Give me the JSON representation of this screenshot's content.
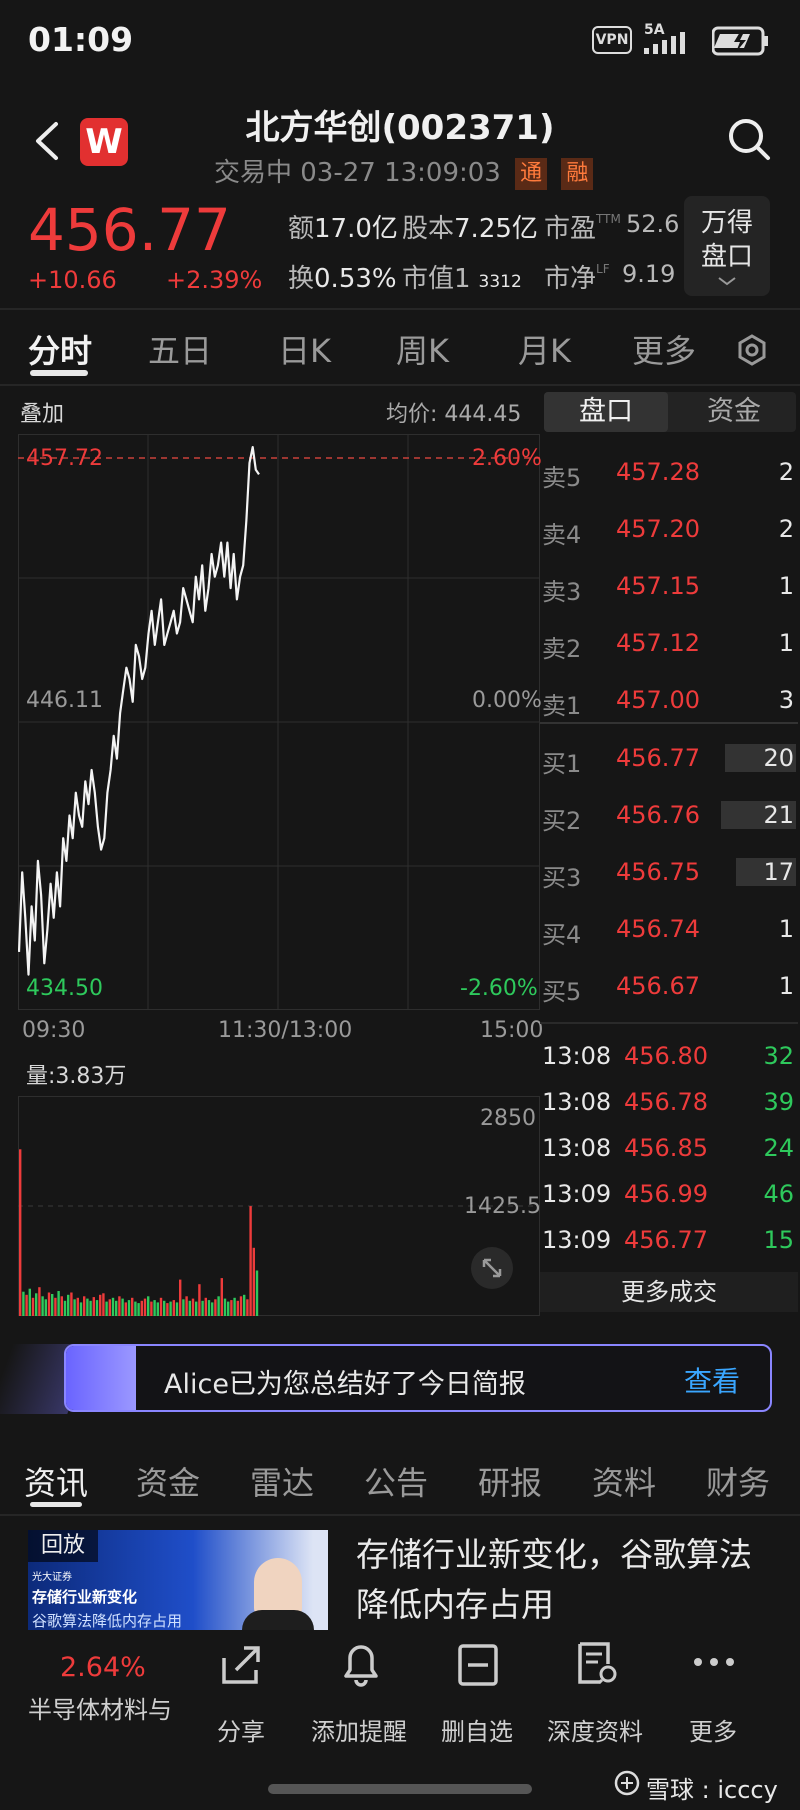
{
  "status_bar": {
    "time": "01:09",
    "vpn": "VPN",
    "network": "5A"
  },
  "header": {
    "title": "北方华创(002371)",
    "subtitle": "交易中 03-27 13:09:03",
    "tag_tong": "通",
    "tag_rong": "融"
  },
  "quote": {
    "price": "456.77",
    "change": "+10.66",
    "change_pct": "+2.39%",
    "amount_label": "额",
    "amount": "17.0亿",
    "shares_label": "股本",
    "shares": "7.25亿",
    "pe_label": "市盈",
    "pe_sup": "TTM",
    "pe": "52.6",
    "turnover_label": "换",
    "turnover": "0.53%",
    "mktcap_label": "市值1",
    "mktcap": "3312",
    "pb_label": "市净",
    "pb_sup": "LF",
    "pb": "9.19",
    "wande_line1": "万得",
    "wande_line2": "盘口"
  },
  "tabs": [
    "分时",
    "五日",
    "日K",
    "周K",
    "月K",
    "更多"
  ],
  "chart": {
    "overlay_label": "叠加",
    "avg_price_label": "均价: 444.45",
    "high_label": "457.72",
    "high_pct": "2.60%",
    "mid_label": "446.11",
    "mid_pct": "0.00%",
    "low_label": "434.50",
    "low_pct": "-2.60%",
    "time_start": "09:30",
    "time_mid": "11:30/13:00",
    "time_end": "15:00",
    "volume_label": "量:3.83万",
    "vol_top": "2850",
    "vol_mid": "1425.5"
  },
  "chart_data": {
    "type": "line",
    "ylim": [
      434.5,
      457.72
    ],
    "prev_close": 446.11,
    "x_range_minutes": 240,
    "price_series": [
      436.0,
      439.5,
      437.5,
      435.0,
      438.0,
      436.5,
      440.0,
      438.5,
      435.5,
      437.0,
      439.0,
      437.5,
      439.5,
      438.0,
      441.0,
      440.0,
      442.0,
      441.0,
      443.0,
      442.0,
      441.5,
      443.5,
      442.5,
      444.0,
      443.0,
      441.5,
      440.5,
      441.0,
      443.0,
      444.0,
      445.5,
      444.5,
      446.5,
      447.5,
      448.5,
      448.0,
      447.0,
      449.5,
      449.0,
      448.0,
      448.5,
      450.0,
      451.0,
      449.5,
      450.5,
      451.5,
      449.5,
      450.0,
      450.5,
      451.0,
      450.0,
      450.5,
      452.0,
      451.5,
      451.0,
      450.5,
      452.5,
      451.5,
      453.0,
      451.0,
      452.0,
      453.5,
      452.5,
      453.0,
      454.0,
      452.5,
      454.0,
      452.0,
      453.5,
      451.5,
      452.5,
      453.0,
      455.0,
      457.5,
      458.2,
      457.2,
      457.0
    ],
    "volume_max": 2850,
    "volume_series": [
      2200,
      320,
      280,
      360,
      240,
      300,
      380,
      260,
      220,
      310,
      290,
      240,
      330,
      260,
      200,
      280,
      310,
      220,
      240,
      180,
      260,
      230,
      200,
      250,
      210,
      280,
      300,
      190,
      220,
      240,
      200,
      260,
      230,
      180,
      210,
      240,
      190,
      170,
      200,
      230,
      260,
      190,
      210,
      180,
      240,
      200,
      170,
      190,
      210,
      180,
      480,
      220,
      260,
      200,
      230,
      190,
      420,
      200,
      240,
      210,
      180,
      220,
      260,
      500,
      230,
      190,
      210,
      240,
      200,
      260,
      280,
      220,
      1450,
      900,
      600
    ],
    "volume_colors": [
      "r",
      "g",
      "r",
      "g",
      "r",
      "g",
      "r",
      "g",
      "g",
      "r",
      "g",
      "r",
      "g",
      "r",
      "g",
      "g",
      "r",
      "g",
      "r",
      "g",
      "r",
      "g",
      "g",
      "r",
      "g",
      "r",
      "r",
      "g",
      "r",
      "g",
      "g",
      "r",
      "g",
      "r",
      "g",
      "r",
      "g",
      "g",
      "r",
      "r",
      "g",
      "r",
      "g",
      "g",
      "r",
      "g",
      "r",
      "g",
      "r",
      "g",
      "r",
      "g",
      "r",
      "g",
      "r",
      "g",
      "r",
      "g",
      "r",
      "g",
      "g",
      "r",
      "g",
      "r",
      "g",
      "g",
      "r",
      "g",
      "r",
      "r",
      "g",
      "r",
      "r",
      "r",
      "g"
    ]
  },
  "order_book": {
    "tab_active": "盘口",
    "tab_other": "资金",
    "asks": [
      {
        "label": "卖5",
        "price": "457.28",
        "vol": "2"
      },
      {
        "label": "卖4",
        "price": "457.20",
        "vol": "2"
      },
      {
        "label": "卖3",
        "price": "457.15",
        "vol": "1"
      },
      {
        "label": "卖2",
        "price": "457.12",
        "vol": "1"
      },
      {
        "label": "卖1",
        "price": "457.00",
        "vol": "3"
      }
    ],
    "bids": [
      {
        "label": "买1",
        "price": "456.77",
        "vol": "20",
        "bar": 0.74
      },
      {
        "label": "买2",
        "price": "456.76",
        "vol": "21",
        "bar": 0.78
      },
      {
        "label": "买3",
        "price": "456.75",
        "vol": "17",
        "bar": 0.63
      },
      {
        "label": "买4",
        "price": "456.74",
        "vol": "1",
        "bar": 0
      },
      {
        "label": "买5",
        "price": "456.67",
        "vol": "1",
        "bar": 0
      }
    ]
  },
  "trades": [
    {
      "time": "13:08",
      "price": "456.80",
      "vol": "32"
    },
    {
      "time": "13:08",
      "price": "456.78",
      "vol": "39"
    },
    {
      "time": "13:08",
      "price": "456.85",
      "vol": "24"
    },
    {
      "time": "13:09",
      "price": "456.99",
      "vol": "46"
    },
    {
      "time": "13:09",
      "price": "456.77",
      "vol": "15"
    }
  ],
  "more_trades": "更多成交",
  "banner": {
    "text": "Alice已为您总结好了今日简报",
    "action": "查看"
  },
  "news_tabs": [
    "资讯",
    "资金",
    "雷达",
    "公告",
    "研报",
    "资料",
    "财务"
  ],
  "news": {
    "thumb_badge": "回放",
    "thumb_small": "光大证券",
    "thumb_line1": "存储行业新变化",
    "thumb_line2": "谷歌算法降低内存占用",
    "title": "存储行业新变化，谷歌算法降低内存占用"
  },
  "bottom_bar": {
    "sector_pct": "2.64%",
    "sector_name": "半导体材料与",
    "items": [
      "分享",
      "添加提醒",
      "删自选",
      "深度资料",
      "更多"
    ]
  },
  "watermark": "雪球 : icccy",
  "colors": {
    "up": "#ee3b3b",
    "down": "#2ec95c",
    "bg": "#161616",
    "accent": "#8a86ff"
  }
}
